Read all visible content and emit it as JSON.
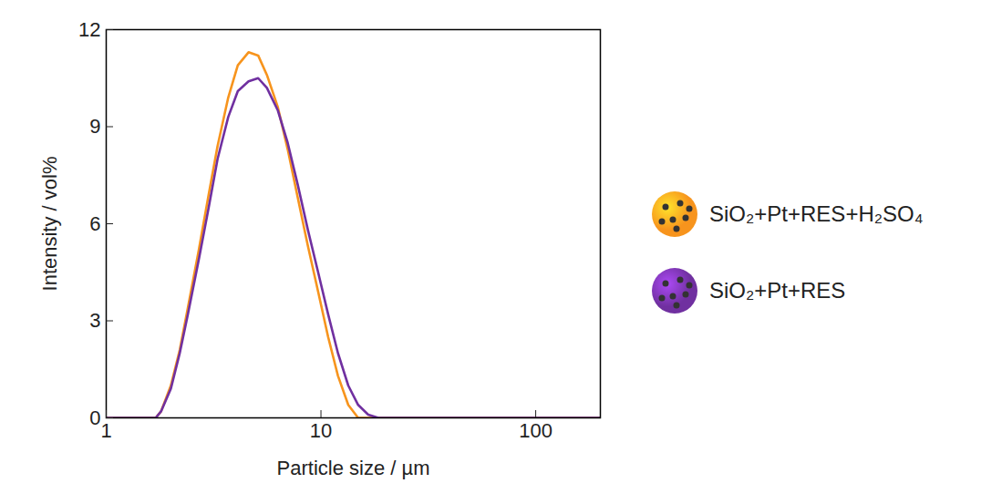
{
  "chart_data": {
    "type": "line",
    "x_label": "Particle size / µm",
    "y_label": "Intensity / vol%",
    "x": [
      1,
      1.7,
      1.8,
      2.0,
      2.2,
      2.4,
      2.7,
      3.0,
      3.3,
      3.7,
      4.1,
      4.6,
      5.1,
      5.6,
      6.3,
      7.0,
      7.8,
      8.7,
      9.7,
      10.8,
      12.0,
      13.4,
      14.9,
      16.6,
      18.5,
      200
    ],
    "series": [
      {
        "name": "SiO₂+Pt+RES+H₂SO₄",
        "color": "#f7941d",
        "values": [
          0,
          0,
          0.2,
          1.0,
          2.1,
          3.4,
          5.2,
          6.9,
          8.4,
          9.9,
          10.9,
          11.3,
          11.2,
          10.6,
          9.6,
          8.3,
          6.8,
          5.3,
          3.9,
          2.5,
          1.3,
          0.4,
          0,
          0,
          0,
          0
        ]
      },
      {
        "name": "SiO₂+Pt+RES",
        "color": "#7030a0",
        "values": [
          0,
          0,
          0.2,
          0.9,
          2.0,
          3.2,
          4.9,
          6.5,
          8.0,
          9.3,
          10.1,
          10.4,
          10.5,
          10.2,
          9.5,
          8.5,
          7.2,
          5.8,
          4.5,
          3.2,
          2.0,
          1.0,
          0.4,
          0.1,
          0,
          0
        ]
      }
    ],
    "xlim": [
      1,
      200
    ],
    "ylim": [
      0,
      12
    ],
    "xticks": [
      1,
      10,
      100
    ],
    "yticks": [
      0,
      3,
      6,
      9,
      12
    ],
    "log": "x",
    "grid": false,
    "legend": "right"
  }
}
